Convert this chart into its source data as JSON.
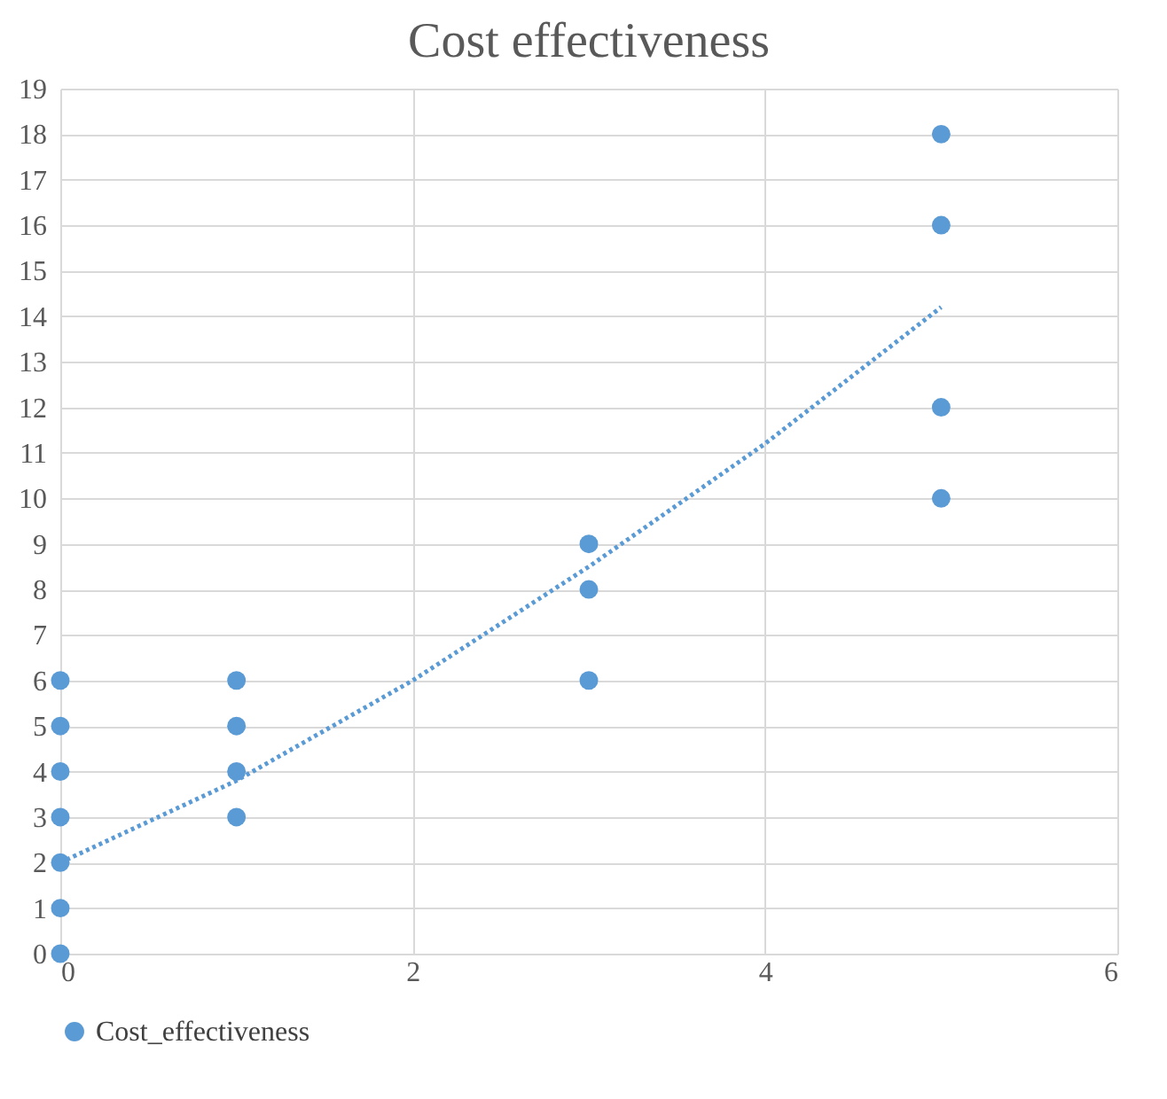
{
  "chart_data": {
    "type": "scatter",
    "title": "Cost effectiveness",
    "series": [
      {
        "name": "Cost_effectiveness",
        "color": "#5b9bd5",
        "x": [
          0,
          0,
          0,
          0,
          0,
          0,
          0,
          1,
          1,
          1,
          1,
          3,
          3,
          3,
          5,
          5,
          5,
          5
        ],
        "values": [
          0,
          1,
          2,
          3,
          4,
          5,
          6,
          3,
          4,
          5,
          6,
          6,
          8,
          9,
          10,
          12,
          16,
          18
        ]
      },
      {
        "type": "line",
        "color": "#5b9bd5",
        "line_style": "dotted",
        "marker": "none",
        "x": [
          0,
          1,
          2,
          3,
          4,
          5
        ],
        "values": [
          2,
          3.8,
          6,
          8.5,
          11.2,
          14.2
        ]
      }
    ],
    "xlim": [
      0,
      6
    ],
    "xticks": [
      0,
      2,
      4,
      6
    ],
    "ylim": [
      0,
      19
    ],
    "yticks": [
      0,
      1,
      2,
      3,
      4,
      5,
      6,
      7,
      8,
      9,
      10,
      11,
      12,
      13,
      14,
      15,
      16,
      17,
      18,
      19
    ],
    "grid": true,
    "legend": "bottom",
    "marker": "circle"
  }
}
